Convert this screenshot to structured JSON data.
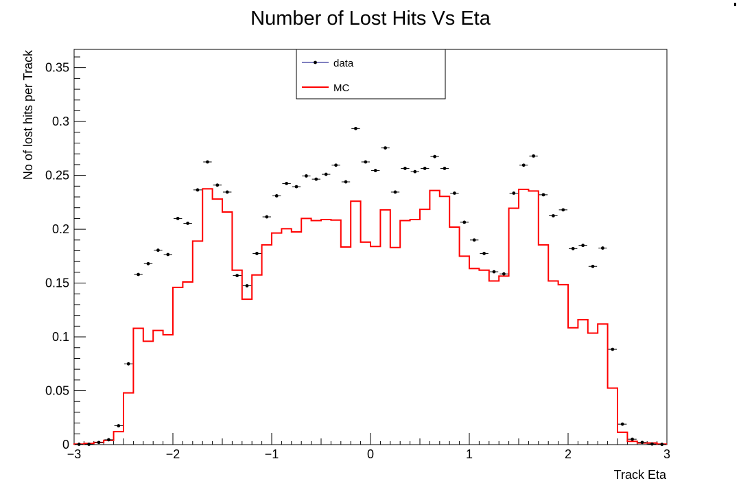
{
  "chart_data": {
    "type": "scatter",
    "title": "Number of Lost Hits Vs Eta",
    "xlabel": "Track Eta",
    "ylabel": "No of lost hits per Track",
    "xlim": [
      -3,
      3
    ],
    "ylim": [
      0,
      0.367
    ],
    "xticks": [
      "−3",
      "−2",
      "−1",
      "0",
      "1",
      "2",
      "3"
    ],
    "yticks": [
      "0",
      "0.05",
      "0.1",
      "0.15",
      "0.2",
      "0.25",
      "0.3",
      "0.35"
    ],
    "grid": false,
    "legend": "top-center",
    "bins": {
      "count": 60,
      "low": -3,
      "high": 3
    },
    "series": [
      {
        "name": "data",
        "style": "markers with horizontal error bars",
        "color": "#000000",
        "values": [
          0.0003,
          0.0003,
          0.002,
          0.0045,
          0.0175,
          0.075,
          0.158,
          0.168,
          0.1805,
          0.1765,
          0.21,
          0.2055,
          0.2365,
          0.2625,
          0.241,
          0.2345,
          0.157,
          0.1475,
          0.1775,
          0.2115,
          0.231,
          0.2425,
          0.2395,
          0.2495,
          0.2465,
          0.251,
          0.2595,
          0.244,
          0.2935,
          0.2625,
          0.2545,
          0.2755,
          0.2345,
          0.2565,
          0.2535,
          0.2565,
          0.2675,
          0.2565,
          0.2335,
          0.2065,
          0.19,
          0.1775,
          0.1605,
          0.1585,
          0.2335,
          0.2595,
          0.268,
          0.232,
          0.2125,
          0.218,
          0.182,
          0.185,
          0.1655,
          0.1825,
          0.0885,
          0.019,
          0.005,
          0.002,
          0.0005,
          0.0002
        ]
      },
      {
        "name": "MC",
        "style": "step histogram",
        "color": "#ff0000",
        "values": [
          0.0005,
          0.001,
          0.002,
          0.004,
          0.012,
          0.048,
          0.108,
          0.096,
          0.106,
          0.102,
          0.146,
          0.151,
          0.189,
          0.2375,
          0.228,
          0.216,
          0.162,
          0.135,
          0.1575,
          0.1855,
          0.1965,
          0.2005,
          0.1975,
          0.21,
          0.208,
          0.209,
          0.2085,
          0.1835,
          0.226,
          0.188,
          0.184,
          0.218,
          0.183,
          0.208,
          0.209,
          0.2185,
          0.236,
          0.2305,
          0.202,
          0.175,
          0.1635,
          0.162,
          0.152,
          0.1565,
          0.2195,
          0.237,
          0.2355,
          0.1855,
          0.152,
          0.1485,
          0.1085,
          0.116,
          0.1035,
          0.112,
          0.0525,
          0.0115,
          0.003,
          0.0015,
          0.0015,
          0.0005
        ]
      }
    ]
  }
}
